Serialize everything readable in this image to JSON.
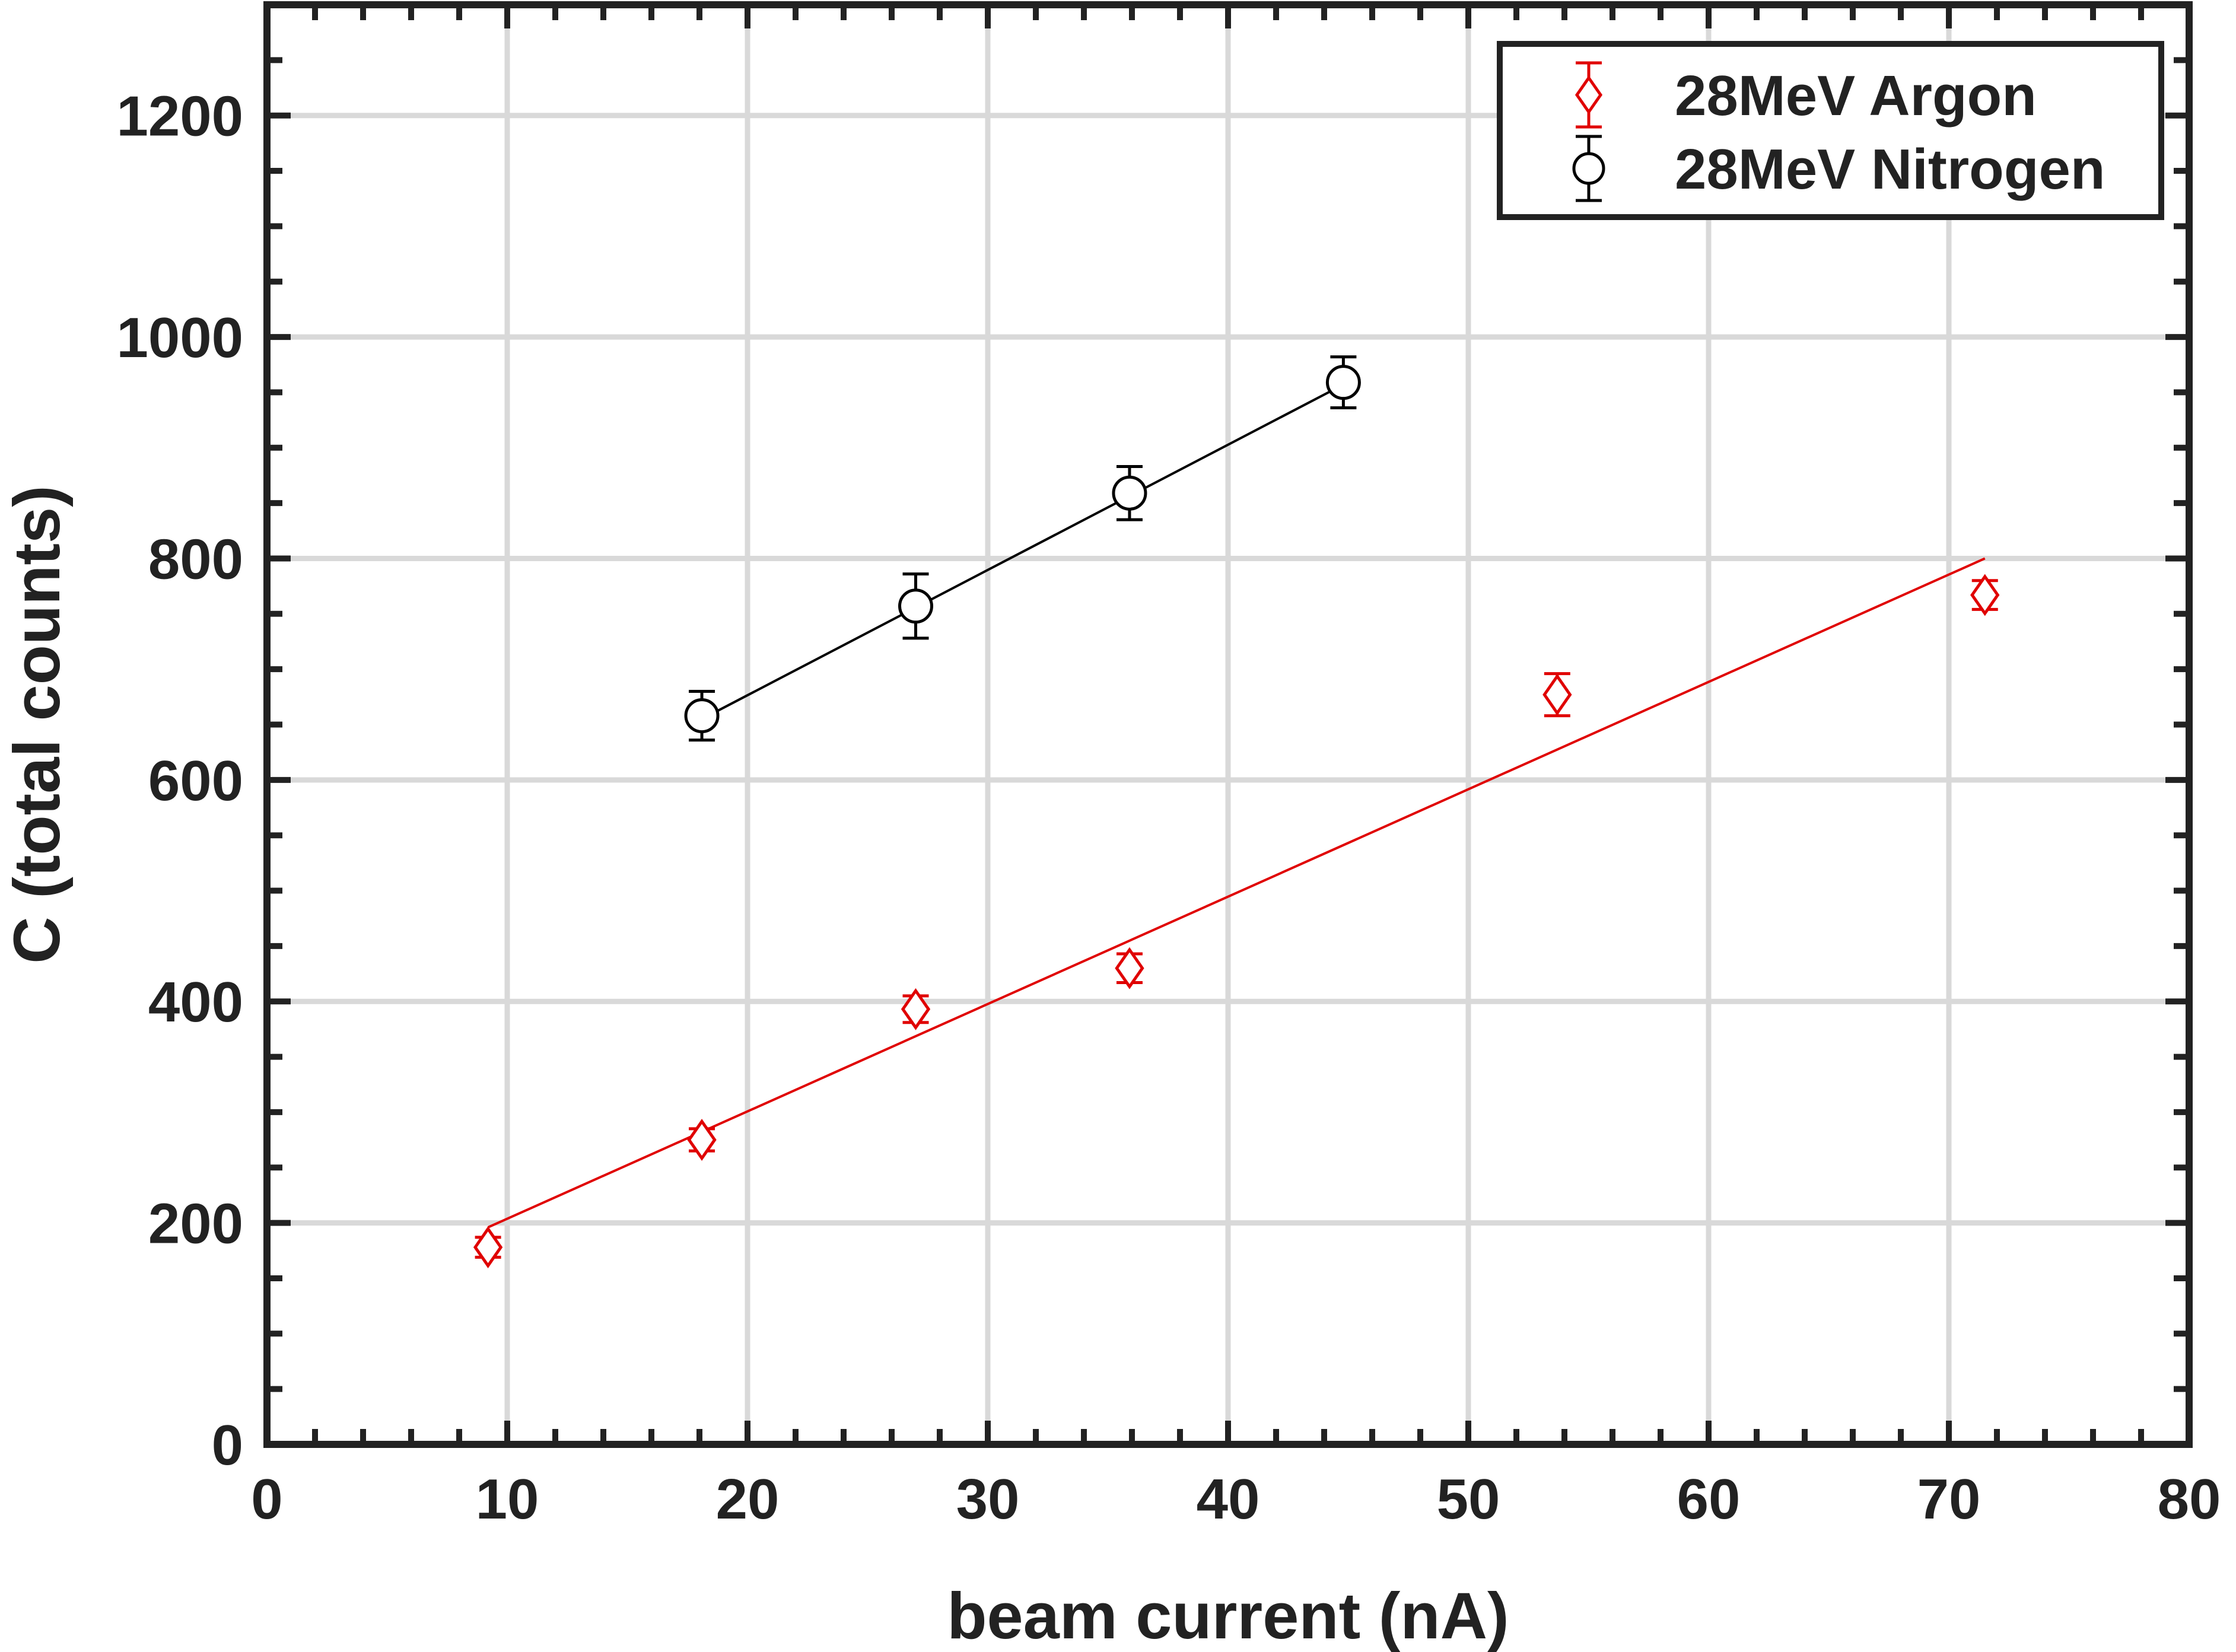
{
  "chart_data": {
    "type": "scatter",
    "title": "",
    "xlabel": "beam current (nA)",
    "ylabel": "C (total counts)",
    "xlim": [
      0,
      80
    ],
    "ylim": [
      0,
      1300
    ],
    "xticks": [
      0,
      10,
      20,
      30,
      40,
      50,
      60,
      70,
      80
    ],
    "yticks": [
      0,
      200,
      400,
      600,
      800,
      1000,
      1200
    ],
    "xtick_labels": [
      "0",
      "10",
      "20",
      "30",
      "40",
      "50",
      "60",
      "70",
      "80"
    ],
    "ytick_labels": [
      "0",
      "200",
      "400",
      "600",
      "800",
      "1000",
      "1200"
    ],
    "grid": true,
    "legend_position": "top-right",
    "series": [
      {
        "name": "28MeV Argon",
        "color": "#e00000",
        "marker": "diamond",
        "x": [
          9.2,
          18.1,
          27.0,
          35.9,
          53.7,
          71.5
        ],
        "y": [
          178,
          275,
          393,
          430,
          677,
          767
        ],
        "yerr": [
          9,
          10,
          12,
          13,
          19,
          13
        ],
        "fit": {
          "x": [
            9.2,
            71.5
          ],
          "y": [
            196,
            800
          ]
        }
      },
      {
        "name": "28MeV Nitrogen",
        "color": "#000000",
        "marker": "circle",
        "x": [
          18.1,
          27.0,
          35.9,
          44.8
        ],
        "y": [
          658,
          757,
          859,
          959
        ],
        "yerr": [
          22,
          29,
          24,
          23
        ],
        "fit": {
          "x": [
            18.1,
            44.8
          ],
          "y": [
            655,
            957
          ]
        }
      }
    ]
  }
}
